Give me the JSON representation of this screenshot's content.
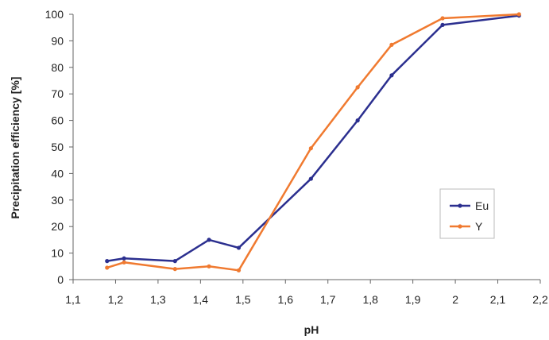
{
  "chart_data": {
    "type": "line",
    "title": "",
    "xlabel": "pH",
    "ylabel": "Precipitation efficiency [%]",
    "xlim": [
      1.1,
      2.2
    ],
    "ylim": [
      0,
      100
    ],
    "x_ticks": [
      "1,1",
      "1,2",
      "1,3",
      "1,4",
      "1,5",
      "1,6",
      "1,7",
      "1,8",
      "1,9",
      "2",
      "2,1",
      "2,2"
    ],
    "y_ticks": [
      "0",
      "10",
      "20",
      "30",
      "40",
      "50",
      "60",
      "70",
      "80",
      "90",
      "100"
    ],
    "grid": false,
    "legend": "right",
    "series": [
      {
        "name": "Eu",
        "color": "#2b2f8f",
        "points": [
          {
            "x": 1.18,
            "y": 7
          },
          {
            "x": 1.22,
            "y": 8
          },
          {
            "x": 1.34,
            "y": 7
          },
          {
            "x": 1.42,
            "y": 15
          },
          {
            "x": 1.49,
            "y": 12
          },
          {
            "x": 1.66,
            "y": 38
          },
          {
            "x": 1.77,
            "y": 60
          },
          {
            "x": 1.85,
            "y": 77
          },
          {
            "x": 1.97,
            "y": 96
          },
          {
            "x": 2.15,
            "y": 99.5
          }
        ]
      },
      {
        "name": "Y",
        "color": "#f07a30",
        "points": [
          {
            "x": 1.18,
            "y": 4.5
          },
          {
            "x": 1.22,
            "y": 6.5
          },
          {
            "x": 1.34,
            "y": 4
          },
          {
            "x": 1.42,
            "y": 5
          },
          {
            "x": 1.49,
            "y": 3.5
          },
          {
            "x": 1.66,
            "y": 49.5
          },
          {
            "x": 1.77,
            "y": 72.5
          },
          {
            "x": 1.85,
            "y": 88.5
          },
          {
            "x": 1.97,
            "y": 98.5
          },
          {
            "x": 2.15,
            "y": 100
          }
        ]
      }
    ]
  }
}
